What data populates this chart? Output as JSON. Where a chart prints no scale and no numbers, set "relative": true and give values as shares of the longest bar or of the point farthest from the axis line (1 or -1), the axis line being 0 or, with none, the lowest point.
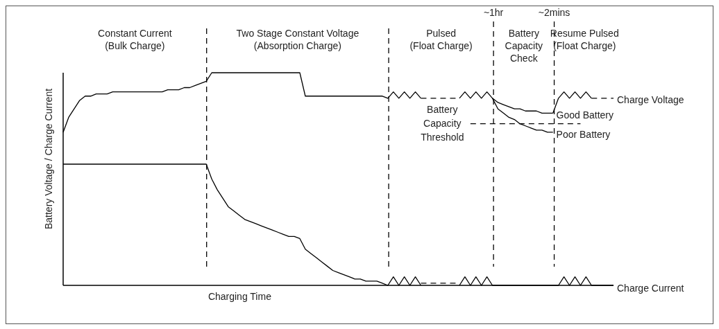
{
  "chart_data": {
    "type": "line",
    "relative": true,
    "xlabel": "Charging Time",
    "ylabel": "Battery Voltage / Charge Current",
    "categories": [
      null,
      null,
      null,
      null,
      null,
      null,
      null,
      null,
      null,
      null,
      null,
      null,
      null,
      null,
      null,
      null,
      null,
      null,
      null,
      null,
      null,
      null,
      null,
      null,
      null,
      null,
      null,
      null,
      null,
      null,
      null,
      null,
      null,
      null,
      null,
      null,
      null,
      null,
      null,
      null,
      null,
      null,
      null,
      null,
      null,
      null,
      null,
      null,
      null,
      null,
      null,
      null,
      null,
      null,
      null,
      null,
      null,
      null,
      null,
      null,
      null,
      null,
      null,
      null,
      null,
      null,
      null,
      null,
      null,
      null,
      null,
      null,
      null,
      null,
      null,
      null,
      null,
      null,
      null,
      null,
      null,
      null,
      null,
      null,
      null,
      null,
      null,
      null,
      null,
      null,
      null,
      null,
      null,
      null,
      null,
      null,
      null,
      null,
      null,
      null,
      null
    ],
    "annotations": [
      "Constant Current\n(Bulk Charge)",
      "Two Stage Constant Voltage\n(Absorption Charge)",
      "Pulsed\n(Float Charge)",
      "Battery\nCapacity\nCheck",
      "Resume Pulsed\n(Float Charge)",
      "~1hr",
      "~2mins"
    ],
    "series": [
      {
        "color": "#000000",
        "line_style": "solid",
        "values": [
          0.72,
          0.79,
          0.83,
          0.87,
          0.89,
          0.89,
          0.9,
          0.9,
          0.9,
          0.91,
          0.91,
          0.91,
          0.91,
          0.91,
          0.91,
          0.91,
          0.91,
          0.91,
          0.91,
          0.92,
          0.92,
          0.92,
          0.93,
          0.93,
          0.94,
          0.95,
          0.96,
          1,
          1,
          1,
          1,
          1,
          1,
          1,
          1,
          1,
          1,
          1,
          1,
          1,
          1,
          1,
          1,
          1,
          0.89,
          0.89,
          0.89,
          0.89,
          0.89,
          0.89,
          0.89,
          0.89,
          0.89,
          0.89,
          0.89,
          0.89,
          0.89,
          0.89,
          0.89,
          0.88,
          0.91,
          0.88,
          0.91,
          0.88,
          0.91,
          0.88,
          null,
          null,
          null,
          null,
          null,
          null,
          null,
          null,
          null,
          null,
          null,
          null,
          null,
          null,
          null,
          null,
          null,
          null,
          null,
          null,
          null,
          null,
          null,
          null,
          null,
          null,
          null,
          null,
          null,
          null,
          null,
          null,
          null,
          null,
          null
        ]
      },
      {
        "color": "#000000",
        "line_style": "dashed",
        "values": [
          null,
          null,
          null,
          null,
          null,
          null,
          null,
          null,
          null,
          null,
          null,
          null,
          null,
          null,
          null,
          null,
          null,
          null,
          null,
          null,
          null,
          null,
          null,
          null,
          null,
          null,
          null,
          null,
          null,
          null,
          null,
          null,
          null,
          null,
          null,
          null,
          null,
          null,
          null,
          null,
          null,
          null,
          null,
          null,
          null,
          null,
          null,
          null,
          null,
          null,
          null,
          null,
          null,
          null,
          null,
          null,
          null,
          null,
          null,
          null,
          null,
          null,
          null,
          null,
          null,
          0.88,
          0.88,
          0.88,
          0.88,
          0.88,
          0.88,
          0.88,
          0.88,
          null,
          null,
          null,
          null,
          null,
          null,
          null,
          null,
          null,
          null,
          null,
          null,
          null,
          null,
          null,
          null,
          null,
          null,
          null,
          null,
          null,
          null,
          null,
          null,
          null,
          null,
          null,
          null
        ]
      },
      {
        "name": "Good Battery",
        "color": "#000000",
        "line_style": "solid",
        "values": [
          null,
          null,
          null,
          null,
          null,
          null,
          null,
          null,
          null,
          null,
          null,
          null,
          null,
          null,
          null,
          null,
          null,
          null,
          null,
          null,
          null,
          null,
          null,
          null,
          null,
          null,
          null,
          null,
          null,
          null,
          null,
          null,
          null,
          null,
          null,
          null,
          null,
          null,
          null,
          null,
          null,
          null,
          null,
          null,
          null,
          null,
          null,
          null,
          null,
          null,
          null,
          null,
          null,
          null,
          null,
          null,
          null,
          null,
          null,
          null,
          null,
          null,
          null,
          null,
          null,
          null,
          null,
          null,
          null,
          null,
          null,
          null,
          0.88,
          0.91,
          0.88,
          0.91,
          0.88,
          0.91,
          0.88,
          0.86,
          0.85,
          0.84,
          0.83,
          0.83,
          0.82,
          0.82,
          0.82,
          0.81,
          0.81,
          0.81,
          null,
          null,
          null,
          null,
          null,
          null,
          null,
          null,
          null,
          null,
          null
        ]
      },
      {
        "name": "Poor Battery",
        "color": "#000000",
        "line_style": "solid",
        "values": [
          null,
          null,
          null,
          null,
          null,
          null,
          null,
          null,
          null,
          null,
          null,
          null,
          null,
          null,
          null,
          null,
          null,
          null,
          null,
          null,
          null,
          null,
          null,
          null,
          null,
          null,
          null,
          null,
          null,
          null,
          null,
          null,
          null,
          null,
          null,
          null,
          null,
          null,
          null,
          null,
          null,
          null,
          null,
          null,
          null,
          null,
          null,
          null,
          null,
          null,
          null,
          null,
          null,
          null,
          null,
          null,
          null,
          null,
          null,
          null,
          null,
          null,
          null,
          null,
          null,
          null,
          null,
          null,
          null,
          null,
          null,
          null,
          null,
          null,
          null,
          null,
          null,
          null,
          0.88,
          0.83,
          0.81,
          0.79,
          0.78,
          0.76,
          0.75,
          0.74,
          0.73,
          0.73,
          0.72,
          0.72,
          null,
          null,
          null,
          null,
          null,
          null,
          null,
          null,
          null,
          null,
          null
        ]
      },
      {
        "color": "#000000",
        "line_style": "solid",
        "values": [
          null,
          null,
          null,
          null,
          null,
          null,
          null,
          null,
          null,
          null,
          null,
          null,
          null,
          null,
          null,
          null,
          null,
          null,
          null,
          null,
          null,
          null,
          null,
          null,
          null,
          null,
          null,
          null,
          null,
          null,
          null,
          null,
          null,
          null,
          null,
          null,
          null,
          null,
          null,
          null,
          null,
          null,
          null,
          null,
          null,
          null,
          null,
          null,
          null,
          null,
          null,
          null,
          null,
          null,
          null,
          null,
          null,
          null,
          null,
          null,
          null,
          null,
          null,
          null,
          null,
          null,
          null,
          null,
          null,
          null,
          null,
          null,
          null,
          null,
          null,
          null,
          null,
          null,
          null,
          null,
          null,
          null,
          null,
          null,
          null,
          null,
          null,
          null,
          null,
          0.81,
          0.88,
          0.91,
          0.88,
          0.91,
          0.88,
          0.91,
          0.88,
          null,
          null,
          null,
          null
        ]
      },
      {
        "name": "Charge Voltage",
        "color": "#000000",
        "line_style": "dashed",
        "values": [
          null,
          null,
          null,
          null,
          null,
          null,
          null,
          null,
          null,
          null,
          null,
          null,
          null,
          null,
          null,
          null,
          null,
          null,
          null,
          null,
          null,
          null,
          null,
          null,
          null,
          null,
          null,
          null,
          null,
          null,
          null,
          null,
          null,
          null,
          null,
          null,
          null,
          null,
          null,
          null,
          null,
          null,
          null,
          null,
          null,
          null,
          null,
          null,
          null,
          null,
          null,
          null,
          null,
          null,
          null,
          null,
          null,
          null,
          null,
          null,
          null,
          null,
          null,
          null,
          null,
          null,
          null,
          null,
          null,
          null,
          null,
          null,
          null,
          null,
          null,
          null,
          null,
          null,
          null,
          null,
          null,
          null,
          null,
          null,
          null,
          null,
          null,
          null,
          null,
          null,
          null,
          null,
          null,
          null,
          null,
          null,
          0.88,
          0.88,
          0.88,
          0.88,
          0.88
        ]
      },
      {
        "name": "Battery\nCapacity\nThreshold",
        "color": "#000000",
        "line_style": "dashed",
        "values": [
          null,
          null,
          null,
          null,
          null,
          null,
          null,
          null,
          null,
          null,
          null,
          null,
          null,
          null,
          null,
          null,
          null,
          null,
          null,
          null,
          null,
          null,
          null,
          null,
          null,
          null,
          null,
          null,
          null,
          null,
          null,
          null,
          null,
          null,
          null,
          null,
          null,
          null,
          null,
          null,
          null,
          null,
          null,
          null,
          null,
          null,
          null,
          null,
          null,
          null,
          null,
          null,
          null,
          null,
          null,
          null,
          null,
          null,
          null,
          null,
          null,
          null,
          null,
          null,
          null,
          null,
          null,
          null,
          null,
          null,
          null,
          null,
          null,
          null,
          0.76,
          0.76,
          0.76,
          0.76,
          0.76,
          0.76,
          0.76,
          0.76,
          0.76,
          0.76,
          0.76,
          0.76,
          0.76,
          0.76,
          0.76,
          0.76,
          0.76,
          0.76,
          0.76,
          0.76,
          0.76,
          null,
          null,
          null,
          null,
          null,
          null
        ]
      },
      {
        "color": "#000000",
        "line_style": "solid",
        "values": [
          0.57,
          0.57,
          0.57,
          0.57,
          0.57,
          0.57,
          0.57,
          0.57,
          0.57,
          0.57,
          0.57,
          0.57,
          0.57,
          0.57,
          0.57,
          0.57,
          0.57,
          0.57,
          0.57,
          0.57,
          0.57,
          0.57,
          0.57,
          0.57,
          0.57,
          0.57,
          0.57,
          0.5,
          0.45,
          0.41,
          0.37,
          0.35,
          0.33,
          0.31,
          0.3,
          0.29,
          0.28,
          0.27,
          0.26,
          0.25,
          0.24,
          0.23,
          0.23,
          0.22,
          0.17,
          0.15,
          0.13,
          0.11,
          0.09,
          0.07,
          0.06,
          0.05,
          0.04,
          0.03,
          0.03,
          0.02,
          0.02,
          0.02,
          0.01,
          0,
          0.04,
          0,
          0.04,
          0,
          0.04,
          0,
          null,
          null,
          null,
          null,
          null,
          null,
          null,
          null,
          null,
          null,
          null,
          null,
          null,
          null,
          null,
          null,
          null,
          null,
          null,
          null,
          null,
          null,
          null,
          null,
          null,
          null,
          null,
          null,
          null,
          null,
          null,
          null,
          null,
          null,
          null
        ]
      },
      {
        "color": "#000000",
        "line_style": "dashed",
        "values": [
          null,
          null,
          null,
          null,
          null,
          null,
          null,
          null,
          null,
          null,
          null,
          null,
          null,
          null,
          null,
          null,
          null,
          null,
          null,
          null,
          null,
          null,
          null,
          null,
          null,
          null,
          null,
          null,
          null,
          null,
          null,
          null,
          null,
          null,
          null,
          null,
          null,
          null,
          null,
          null,
          null,
          null,
          null,
          null,
          null,
          null,
          null,
          null,
          null,
          null,
          null,
          null,
          null,
          null,
          null,
          null,
          null,
          null,
          null,
          null,
          null,
          null,
          null,
          null,
          null,
          0.01,
          0.01,
          0.01,
          0.01,
          0.01,
          0.01,
          0.01,
          0.01,
          null,
          null,
          null,
          null,
          null,
          null,
          null,
          null,
          null,
          null,
          null,
          null,
          null,
          null,
          null,
          null,
          null,
          null,
          null,
          null,
          null,
          null,
          null,
          null,
          null,
          null,
          null,
          null
        ]
      },
      {
        "name": "Charge Current",
        "color": "#000000",
        "line_style": "solid",
        "values": [
          null,
          null,
          null,
          null,
          null,
          null,
          null,
          null,
          null,
          null,
          null,
          null,
          null,
          null,
          null,
          null,
          null,
          null,
          null,
          null,
          null,
          null,
          null,
          null,
          null,
          null,
          null,
          null,
          null,
          null,
          null,
          null,
          null,
          null,
          null,
          null,
          null,
          null,
          null,
          null,
          null,
          null,
          null,
          null,
          null,
          null,
          null,
          null,
          null,
          null,
          null,
          null,
          null,
          null,
          null,
          null,
          null,
          null,
          null,
          null,
          null,
          null,
          null,
          null,
          null,
          null,
          null,
          null,
          null,
          null,
          null,
          null,
          0,
          0.04,
          0,
          0.04,
          0,
          0.04,
          0,
          0,
          0,
          0,
          0,
          0,
          0,
          0,
          0,
          0,
          0,
          0,
          0,
          0.04,
          0,
          0.04,
          0,
          0.04,
          0,
          0,
          0,
          0,
          0
        ]
      }
    ]
  }
}
